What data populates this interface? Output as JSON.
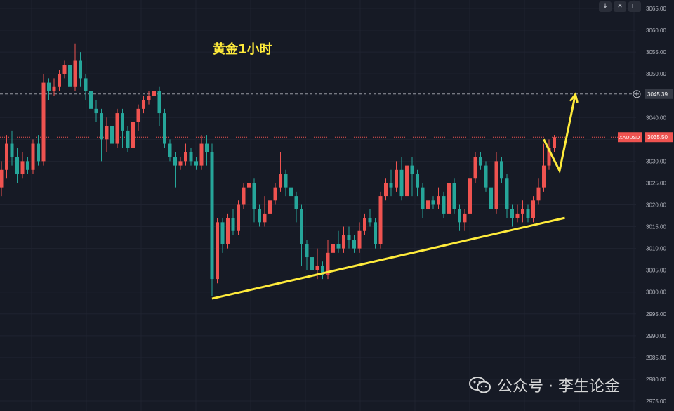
{
  "title": "黄金1小时",
  "watermark": {
    "account_label": "公众号 · 李生论金",
    "icon": "wechat-icon"
  },
  "toolbar": [
    {
      "name": "scroll-down-button",
      "glyph": "↓"
    },
    {
      "name": "close-button",
      "glyph": "✕"
    },
    {
      "name": "maximize-button",
      "glyph": "□"
    }
  ],
  "colors": {
    "background": "#161a25",
    "up": "#ef5350",
    "down": "#26a69a",
    "annotation": "#ffeb3b",
    "symbol_tag": "#ef5350"
  },
  "chart_data": {
    "type": "candlestick",
    "symbol": "XAUUSD",
    "y_ticks": [
      3065,
      3060,
      3055,
      3050,
      3045,
      3040,
      3035,
      3030,
      3025,
      3020,
      3015,
      3010,
      3005,
      3000,
      2995,
      2990,
      2985,
      2980,
      2975
    ],
    "ylim": [
      2974,
      3067
    ],
    "price_lines": [
      {
        "label": "3045.39",
        "value": 3045.39,
        "style": "crosshair"
      },
      {
        "label": "3035.50",
        "value": 3035.5,
        "style": "last-price",
        "tag": "XAUUSD"
      }
    ],
    "candles": [
      [
        3024,
        3028,
        3022,
        3030
      ],
      [
        3028,
        3034,
        3026,
        3036
      ],
      [
        3034,
        3031,
        3029,
        3037
      ],
      [
        3031,
        3027,
        3025,
        3033
      ],
      [
        3027,
        3030,
        3026,
        3032
      ],
      [
        3030,
        3028,
        3027,
        3031
      ],
      [
        3028,
        3034,
        3027,
        3035
      ],
      [
        3034,
        3030,
        3029,
        3036
      ],
      [
        3030,
        3048,
        3029,
        3050
      ],
      [
        3048,
        3046,
        3044,
        3049
      ],
      [
        3046,
        3047,
        3045,
        3049
      ],
      [
        3047,
        3050,
        3046,
        3051
      ],
      [
        3050,
        3052,
        3049,
        3053
      ],
      [
        3052,
        3047,
        3045,
        3054
      ],
      [
        3047,
        3053,
        3046,
        3057
      ],
      [
        3053,
        3049,
        3047,
        3055
      ],
      [
        3049,
        3046,
        3044,
        3050
      ],
      [
        3046,
        3042,
        3040,
        3047
      ],
      [
        3042,
        3041,
        3039,
        3044
      ],
      [
        3041,
        3035,
        3030,
        3042
      ],
      [
        3035,
        3038,
        3032,
        3040
      ],
      [
        3038,
        3034,
        3031,
        3039
      ],
      [
        3034,
        3041,
        3033,
        3042
      ],
      [
        3041,
        3037,
        3033,
        3042
      ],
      [
        3037,
        3033,
        3032,
        3038
      ],
      [
        3033,
        3039,
        3032,
        3040
      ],
      [
        3039,
        3042,
        3037,
        3043
      ],
      [
        3042,
        3044,
        3041,
        3045
      ],
      [
        3044,
        3045,
        3043,
        3046
      ],
      [
        3045,
        3046,
        3044,
        3047
      ],
      [
        3046,
        3041,
        3038,
        3047
      ],
      [
        3041,
        3034,
        3033,
        3042
      ],
      [
        3034,
        3031,
        3030,
        3035
      ],
      [
        3031,
        3029,
        3024,
        3032
      ],
      [
        3029,
        3030,
        3028,
        3031
      ],
      [
        3030,
        3032,
        3029,
        3034
      ],
      [
        3032,
        3030,
        3029,
        3033
      ],
      [
        3030,
        3029,
        3028,
        3031
      ],
      [
        3029,
        3034,
        3028,
        3036
      ],
      [
        3034,
        3032,
        3029,
        3036
      ],
      [
        3032,
        3003,
        2999,
        3034
      ],
      [
        3003,
        3016,
        3002,
        3017
      ],
      [
        3016,
        3011,
        3009,
        3017
      ],
      [
        3011,
        3017,
        3010,
        3018
      ],
      [
        3017,
        3014,
        3013,
        3019
      ],
      [
        3014,
        3020,
        3013,
        3021
      ],
      [
        3020,
        3024,
        3019,
        3025
      ],
      [
        3024,
        3025,
        3023,
        3026
      ],
      [
        3025,
        3019,
        3016,
        3026
      ],
      [
        3019,
        3016,
        3015,
        3020
      ],
      [
        3016,
        3018,
        3015,
        3022
      ],
      [
        3018,
        3021,
        3017,
        3022
      ],
      [
        3021,
        3024,
        3020,
        3025
      ],
      [
        3024,
        3027,
        3023,
        3032
      ],
      [
        3027,
        3024,
        3022,
        3028
      ],
      [
        3024,
        3022,
        3020,
        3026
      ],
      [
        3022,
        3019,
        3016,
        3023
      ],
      [
        3019,
        3011,
        3006,
        3020
      ],
      [
        3011,
        3008,
        3005,
        3012
      ],
      [
        3008,
        3005,
        3004,
        3009
      ],
      [
        3005,
        3006,
        3003,
        3010
      ],
      [
        3006,
        3004,
        3003,
        3007
      ],
      [
        3004,
        3009,
        3003,
        3012
      ],
      [
        3009,
        3011,
        3008,
        3013
      ],
      [
        3011,
        3010,
        3009,
        3014
      ],
      [
        3010,
        3013,
        3009,
        3015
      ],
      [
        3013,
        3012,
        3010,
        3015
      ],
      [
        3012,
        3010,
        3009,
        3013
      ],
      [
        3010,
        3014,
        3009,
        3016
      ],
      [
        3014,
        3017,
        3013,
        3018
      ],
      [
        3017,
        3016,
        3015,
        3019
      ],
      [
        3016,
        3011,
        3010,
        3017
      ],
      [
        3011,
        3022,
        3010,
        3023
      ],
      [
        3022,
        3025,
        3021,
        3026
      ],
      [
        3025,
        3024,
        3022,
        3028
      ],
      [
        3024,
        3028,
        3023,
        3030
      ],
      [
        3028,
        3022,
        3021,
        3031
      ],
      [
        3022,
        3029,
        3021,
        3036
      ],
      [
        3029,
        3027,
        3022,
        3031
      ],
      [
        3027,
        3024,
        3022,
        3028
      ],
      [
        3024,
        3019,
        3017,
        3025
      ],
      [
        3019,
        3021,
        3018,
        3022
      ],
      [
        3021,
        3020,
        3019,
        3022
      ],
      [
        3020,
        3022,
        3019,
        3024
      ],
      [
        3022,
        3018,
        3017,
        3023
      ],
      [
        3018,
        3025,
        3017,
        3026
      ],
      [
        3025,
        3019,
        3018,
        3026
      ],
      [
        3019,
        3016,
        3014,
        3020
      ],
      [
        3016,
        3018,
        3014,
        3019
      ],
      [
        3018,
        3026,
        3017,
        3027
      ],
      [
        3026,
        3031,
        3025,
        3032
      ],
      [
        3031,
        3029,
        3028,
        3032
      ],
      [
        3029,
        3024,
        3023,
        3030
      ],
      [
        3024,
        3019,
        3018,
        3025
      ],
      [
        3019,
        3030,
        3018,
        3032
      ],
      [
        3030,
        3026,
        3025,
        3031
      ],
      [
        3026,
        3019,
        3017,
        3027
      ],
      [
        3019,
        3017,
        3015,
        3020
      ],
      [
        3017,
        3018,
        3016,
        3020
      ],
      [
        3018,
        3019,
        3016,
        3021
      ],
      [
        3019,
        3017,
        3016,
        3020
      ],
      [
        3017,
        3021,
        3016,
        3022
      ],
      [
        3021,
        3024,
        3020,
        3026
      ],
      [
        3024,
        3029,
        3023,
        3034
      ],
      [
        3029,
        3033,
        3028,
        3035
      ],
      [
        3033,
        3035.5,
        3032,
        3036
      ]
    ],
    "annotations": [
      {
        "type": "trendline",
        "from": [
          40,
          2998.5
        ],
        "to": [
          107,
          3017
        ]
      },
      {
        "type": "arrow",
        "points": [
          [
            103,
            3035
          ],
          [
            106,
            3027.8
          ],
          [
            109,
            3045.3
          ]
        ]
      }
    ]
  }
}
